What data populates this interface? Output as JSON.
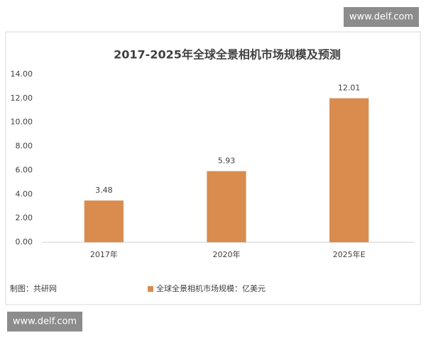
{
  "chart_data": {
    "type": "bar",
    "title": "2017-2025年全球全景相机市场规模及预测",
    "categories": [
      "2017年",
      "2020年",
      "2025年E"
    ],
    "series": [
      {
        "name": "全球全景相机市场规模：亿美元",
        "color": "#d98c4e",
        "values": [
          3.48,
          5.93,
          12.01
        ]
      }
    ],
    "ylim": [
      0,
      14
    ],
    "yticks": [
      {
        "value": 0,
        "label": "0.00"
      },
      {
        "value": 2,
        "label": "2.00"
      },
      {
        "value": 4,
        "label": "4.00"
      },
      {
        "value": 6,
        "label": "6.00"
      },
      {
        "value": 8,
        "label": "8.00"
      },
      {
        "value": 10,
        "label": "10.00"
      },
      {
        "value": 12,
        "label": "12.00"
      },
      {
        "value": 14,
        "label": "14.00"
      }
    ],
    "grid": false,
    "legend": "bottom",
    "source": "制图：共研网"
  },
  "watermarks": [
    "www.delf.com",
    "www.delf.com"
  ]
}
